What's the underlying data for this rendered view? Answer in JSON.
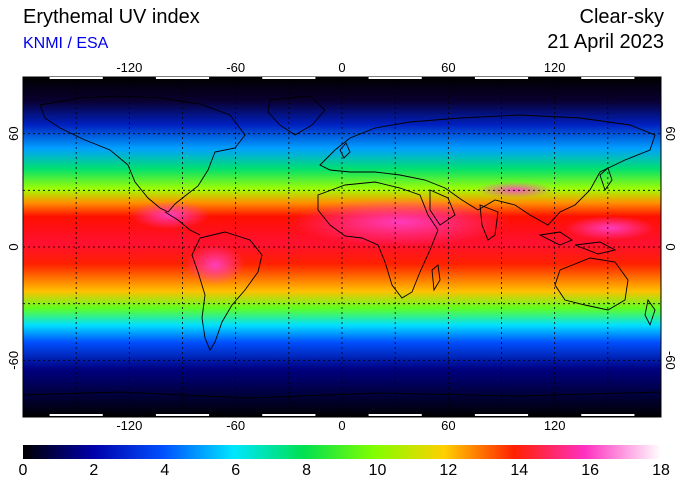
{
  "header": {
    "title": "Erythemal UV index",
    "subtitle": "KNMI / ESA",
    "mode": "Clear-sky",
    "date": "21 April 2023"
  },
  "map": {
    "lon_ticks": [
      "-120",
      "-60",
      "0",
      "60",
      "120"
    ],
    "lat_ticks": [
      "60",
      "0",
      "-60"
    ],
    "lon_values": [
      -120,
      -60,
      0,
      60,
      120
    ],
    "lat_values": [
      60,
      0,
      -60
    ]
  },
  "colorbar": {
    "min": 0,
    "max": 18,
    "ticks": [
      "0",
      "2",
      "4",
      "6",
      "8",
      "10",
      "12",
      "14",
      "16",
      "18"
    ],
    "colors": [
      "#000000",
      "#0000aa",
      "#0050ff",
      "#00e6ff",
      "#00e050",
      "#80ff00",
      "#ffd000",
      "#ff2000",
      "#ff30c0",
      "#ffffff"
    ]
  },
  "chart_data": {
    "type": "heatmap",
    "title": "Erythemal UV index",
    "lon_range": [
      -180,
      180
    ],
    "lat_range": [
      -90,
      90
    ],
    "value_range": [
      0,
      18
    ],
    "uv_by_latitude": {
      "lat": [
        80,
        70,
        60,
        50,
        40,
        30,
        20,
        10,
        0,
        -10,
        -20,
        -30,
        -40,
        -50,
        -60,
        -70,
        -80
      ],
      "uv": [
        0.8,
        2.5,
        3.8,
        5.5,
        7.5,
        9.5,
        12,
        13,
        12.5,
        12,
        11,
        9,
        5.5,
        3,
        1.5,
        0.5,
        0.2
      ]
    }
  }
}
